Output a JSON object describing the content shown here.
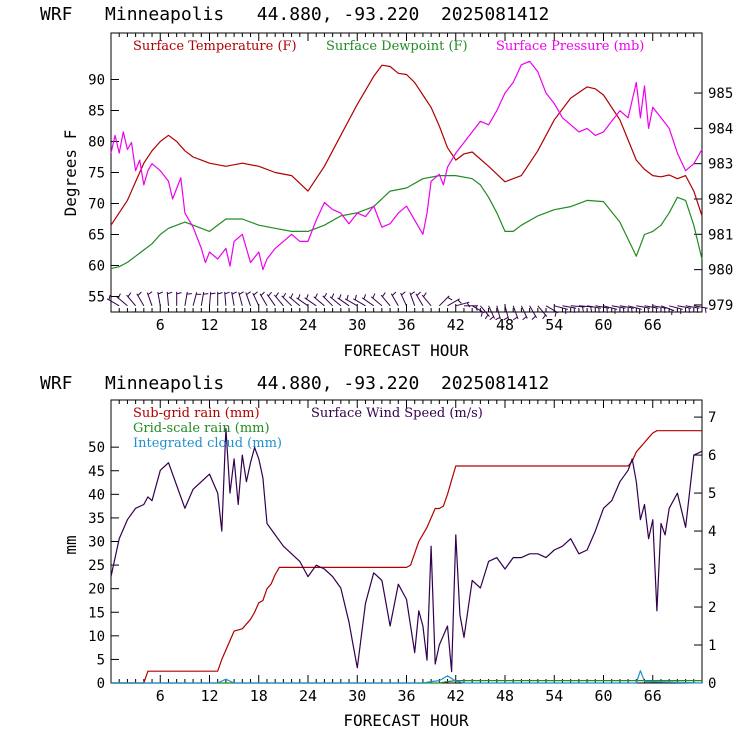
{
  "chart_data": [
    {
      "type": "line",
      "title": "WRF   Minneapolis   44.880, -93.220  2025081412",
      "xlabel": "FORECAST HOUR",
      "ylabel": "Degrees F",
      "xlim": [
        0,
        72
      ],
      "xticks": [
        6,
        12,
        18,
        24,
        30,
        36,
        42,
        48,
        54,
        60,
        66
      ],
      "ylim": [
        52.5,
        97.5
      ],
      "yticks": [
        55,
        60,
        65,
        70,
        75,
        80,
        85,
        90
      ],
      "y2lim": [
        978.8,
        986.7
      ],
      "y2ticks": [
        979,
        980,
        981,
        982,
        983,
        984,
        985
      ],
      "colors": {
        "temperature": "#b00000",
        "dewpoint": "#228b22",
        "pressure": "#ee00ee",
        "wind": "#33004d"
      },
      "series": [
        {
          "name": "Surface Temperature (F)",
          "axis": "left",
          "x": [
            0,
            2,
            3,
            4,
            5,
            6,
            7,
            8,
            9,
            10,
            11,
            12,
            14,
            16,
            18,
            20,
            22,
            24,
            26,
            28,
            30,
            32,
            33,
            34,
            35,
            36,
            37,
            38,
            39,
            40,
            41,
            42,
            43,
            44,
            46,
            48,
            50,
            52,
            54,
            56,
            58,
            59,
            60,
            62,
            64,
            65,
            66,
            67,
            68,
            69,
            70,
            71,
            72
          ],
          "values": [
            66.5,
            70.5,
            73.5,
            76.5,
            78.5,
            80,
            81,
            80,
            78.5,
            77.5,
            77,
            76.5,
            76,
            76.5,
            76,
            75,
            74.5,
            72,
            76,
            81,
            86,
            90.5,
            92.3,
            92.1,
            91,
            90.8,
            89.5,
            87.5,
            85.5,
            82.5,
            79,
            77,
            78,
            78.3,
            76,
            73.5,
            74.5,
            78.5,
            83.5,
            87,
            88.8,
            88.5,
            87.5,
            83.5,
            77,
            75.5,
            74.5,
            74.3,
            74.6,
            74,
            74.5,
            72,
            68
          ]
        },
        {
          "name": "Surface Dewpoint (F)",
          "axis": "left",
          "x": [
            0,
            1,
            2,
            3,
            4,
            5,
            6,
            7,
            8,
            9,
            10,
            12,
            14,
            16,
            18,
            20,
            22,
            24,
            26,
            28,
            30,
            32,
            34,
            36,
            38,
            40,
            42,
            44,
            45,
            46,
            47,
            48,
            49,
            50,
            52,
            54,
            56,
            58,
            60,
            62,
            64,
            65,
            66,
            67,
            68,
            69,
            70,
            71,
            72
          ],
          "values": [
            59.5,
            59.8,
            60.5,
            61.5,
            62.5,
            63.5,
            65,
            66,
            66.5,
            67,
            66.5,
            65.5,
            67.5,
            67.5,
            66.5,
            66,
            65.5,
            65.5,
            66.5,
            68,
            68.5,
            69.5,
            72,
            72.5,
            74,
            74.5,
            74.5,
            74,
            73,
            71,
            68.5,
            65.5,
            65.5,
            66.5,
            68,
            69,
            69.5,
            70.5,
            70.3,
            67,
            61.5,
            65,
            65.5,
            66.5,
            68.5,
            71,
            70.5,
            66.5,
            61
          ]
        },
        {
          "name": "Surface Pressure (mb)",
          "axis": "right",
          "x": [
            0,
            0.5,
            1,
            1.5,
            2,
            2.5,
            3,
            3.5,
            4,
            4.5,
            5,
            6,
            7,
            7.5,
            8,
            8.5,
            9,
            10,
            11,
            11.5,
            12,
            13,
            14,
            14.5,
            15,
            16,
            17,
            18,
            18.5,
            19,
            20,
            21,
            22,
            23,
            24,
            25,
            26,
            27,
            28,
            29,
            30,
            31,
            32,
            33,
            34,
            35,
            36,
            37,
            38,
            38.5,
            39,
            40,
            40.5,
            41,
            42,
            43,
            44,
            45,
            46,
            47,
            48,
            49,
            50,
            51,
            52,
            53,
            54,
            55,
            56,
            57,
            58,
            59,
            60,
            61,
            62,
            63,
            64,
            64.5,
            65,
            65.5,
            66,
            67,
            68,
            69,
            70,
            71,
            72
          ],
          "values": [
            983.3,
            983.8,
            983.3,
            983.9,
            983.4,
            983.6,
            982.8,
            983.1,
            982.4,
            982.8,
            983.0,
            982.8,
            982.5,
            982.0,
            982.3,
            982.6,
            981.6,
            981.2,
            980.6,
            980.2,
            980.5,
            980.3,
            980.6,
            980.1,
            980.8,
            981.0,
            980.2,
            980.5,
            980.0,
            980.3,
            980.6,
            980.8,
            981.0,
            980.8,
            980.8,
            981.4,
            981.9,
            981.7,
            981.6,
            981.3,
            981.6,
            981.5,
            981.8,
            981.2,
            981.3,
            981.6,
            981.8,
            981.4,
            981.0,
            981.6,
            982.5,
            982.7,
            982.4,
            982.9,
            983.3,
            983.6,
            983.9,
            984.2,
            984.1,
            984.5,
            985.0,
            985.3,
            985.8,
            985.9,
            985.6,
            985.0,
            984.7,
            984.3,
            984.1,
            983.9,
            984.0,
            983.8,
            983.9,
            984.2,
            984.5,
            984.3,
            985.3,
            984.3,
            985.2,
            984.0,
            984.6,
            984.3,
            984.0,
            983.3,
            982.8,
            983.0,
            983.4
          ]
        }
      ],
      "legend": [
        "Surface Temperature (F)",
        "Surface Dewpoint (F)",
        "Surface Pressure (mb)"
      ],
      "legend_position": "top-left",
      "wind_barbs": {
        "name": "wind barbs",
        "x": [
          1,
          2,
          3,
          4,
          5,
          6,
          7,
          8,
          9,
          10,
          11,
          12,
          13,
          14,
          15,
          16,
          17,
          18,
          19,
          20,
          21,
          22,
          23,
          24,
          25,
          26,
          27,
          28,
          29,
          30,
          31,
          32,
          33,
          34,
          35,
          36,
          37,
          38,
          39,
          40,
          41,
          42,
          43,
          44,
          45,
          46,
          47,
          48,
          49,
          50,
          51,
          52,
          53,
          54,
          55,
          56,
          57,
          58,
          59,
          60,
          61,
          62,
          63,
          64,
          65,
          66,
          67,
          68,
          69,
          70,
          71
        ],
        "direction_deg": [
          300,
          310,
          320,
          330,
          340,
          350,
          355,
          0,
          10,
          15,
          10,
          5,
          0,
          355,
          350,
          345,
          340,
          335,
          330,
          325,
          320,
          315,
          310,
          305,
          305,
          310,
          315,
          310,
          305,
          300,
          300,
          305,
          310,
          320,
          330,
          335,
          340,
          330,
          320,
          45,
          60,
          75,
          90,
          120,
          140,
          155,
          165,
          165,
          160,
          155,
          150,
          140,
          120,
          105,
          100,
          95,
          95,
          100,
          100,
          105,
          100,
          100,
          105,
          100,
          100,
          100,
          110,
          105,
          100,
          100,
          100
        ]
      }
    },
    {
      "type": "line",
      "title": "WRF   Minneapolis   44.880, -93.220  2025081412",
      "xlabel": "FORECAST HOUR",
      "ylabel": "mm",
      "xlim": [
        0,
        72
      ],
      "xticks": [
        6,
        12,
        18,
        24,
        30,
        36,
        42,
        48,
        54,
        60,
        66
      ],
      "ylim": [
        0,
        60
      ],
      "yticks": [
        0,
        5,
        10,
        15,
        20,
        25,
        30,
        35,
        40,
        45,
        50
      ],
      "y2lim": [
        0,
        7.45
      ],
      "y2ticks": [
        0,
        1,
        2,
        3,
        4,
        5,
        6,
        7
      ],
      "colors": {
        "rain_subgrid": "#b00000",
        "rain_grid": "#228b22",
        "cloud": "#1e8fcf",
        "wind": "#33004d"
      },
      "series": [
        {
          "name": "Sub-grid rain (mm)",
          "axis": "left",
          "x": [
            0,
            4,
            4.5,
            13,
            13.5,
            14,
            14.5,
            15,
            16,
            17,
            17.5,
            18,
            18.5,
            19,
            19.5,
            20,
            20.5,
            36,
            36.5,
            37,
            37.5,
            38,
            38.5,
            39,
            39.5,
            40,
            40.5,
            41,
            41.5,
            42,
            42.5,
            63,
            63.5,
            64,
            64.5,
            65,
            65.5,
            66,
            66.5,
            72
          ],
          "values": [
            0,
            0,
            2.5,
            2.5,
            5,
            7,
            9,
            11,
            11.5,
            13.5,
            15,
            17,
            17.5,
            20,
            21,
            23,
            24.5,
            24.5,
            25,
            27.5,
            30,
            31.5,
            33,
            35,
            37,
            37,
            37.5,
            40,
            43,
            46,
            46,
            46,
            47,
            49,
            50,
            51,
            52,
            53,
            53.5,
            53.5
          ]
        },
        {
          "name": "Surface Wind Speed (m/s)",
          "axis": "right",
          "x": [
            0,
            0.5,
            1,
            2,
            3,
            4,
            4.5,
            5,
            6,
            7,
            8,
            9,
            10,
            11,
            12,
            13,
            13.5,
            14,
            14.5,
            15,
            15.5,
            16,
            16.5,
            17,
            17.5,
            18,
            18.5,
            19,
            20,
            21,
            22,
            23,
            24,
            25,
            26,
            27,
            28,
            29,
            29.5,
            30,
            31,
            32,
            33,
            34,
            35,
            36,
            37,
            37.5,
            38,
            38.5,
            39,
            39.5,
            40,
            41,
            41.5,
            42,
            42.5,
            43,
            44,
            45,
            46,
            47,
            48,
            49,
            50,
            51,
            52,
            53,
            54,
            55,
            56,
            57,
            58,
            59,
            60,
            61,
            62,
            63,
            63.5,
            64,
            64.5,
            65,
            65.5,
            66,
            66.5,
            67,
            67.5,
            68,
            69,
            70,
            71,
            72
          ],
          "values": [
            2.8,
            3.3,
            3.8,
            4.3,
            4.6,
            4.7,
            4.9,
            4.8,
            5.6,
            5.8,
            5.2,
            4.6,
            5.1,
            5.3,
            5.5,
            5.0,
            4.0,
            6.7,
            5.0,
            5.9,
            4.7,
            6.0,
            5.3,
            5.8,
            6.2,
            5.9,
            5.4,
            4.2,
            3.9,
            3.6,
            3.4,
            3.2,
            2.8,
            3.1,
            3.0,
            2.8,
            2.5,
            1.6,
            1.0,
            0.4,
            2.1,
            2.9,
            2.7,
            1.5,
            2.6,
            2.2,
            0.8,
            1.9,
            1.5,
            0.6,
            3.6,
            0.5,
            1.0,
            1.5,
            0.3,
            3.9,
            1.8,
            1.2,
            2.7,
            2.5,
            3.2,
            3.3,
            3.0,
            3.3,
            3.3,
            3.4,
            3.4,
            3.3,
            3.5,
            3.6,
            3.8,
            3.4,
            3.5,
            4.0,
            4.6,
            4.8,
            5.3,
            5.6,
            5.9,
            5.3,
            4.3,
            4.7,
            3.8,
            4.3,
            1.9,
            4.2,
            3.9,
            4.6,
            5.0,
            4.1,
            6.0,
            6.1
          ]
        },
        {
          "name": "Grid-scale rain (mm)",
          "axis": "left",
          "x": [
            0,
            40,
            41,
            42,
            72
          ],
          "values": [
            0,
            0,
            0.3,
            0.5,
            0.5
          ]
        },
        {
          "name": "Integrated cloud (mm)",
          "axis": "left",
          "x": [
            0,
            13,
            14,
            15,
            38,
            39,
            40,
            41,
            42,
            43,
            64,
            64.5,
            65,
            72
          ],
          "values": [
            0,
            0,
            0.8,
            0,
            0,
            0.3,
            0.5,
            1.5,
            0.4,
            0,
            0,
            2.6,
            0.3,
            0
          ]
        }
      ],
      "legend": [
        "Sub-grid rain (mm)",
        "Grid-scale rain (mm)",
        "Integrated cloud (mm)",
        "Surface Wind Speed (m/s)"
      ],
      "legend_position": "top-left"
    }
  ]
}
